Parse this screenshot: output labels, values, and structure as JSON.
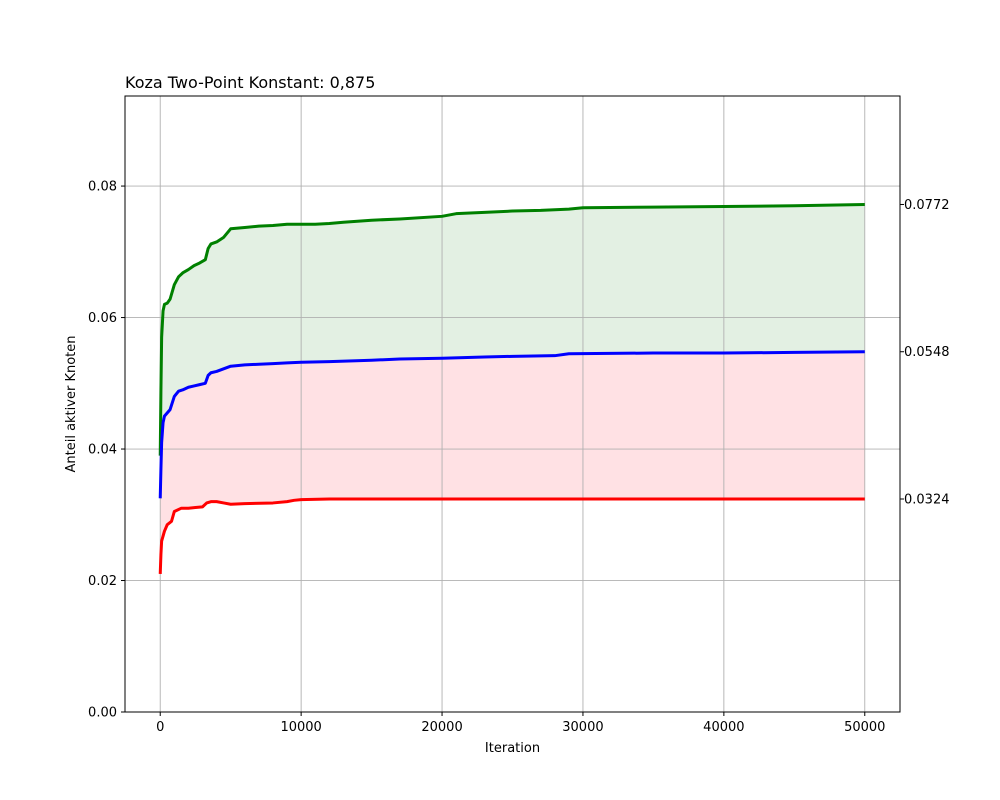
{
  "chart_data": {
    "type": "line",
    "title": "Koza Two-Point Konstant: 0,875",
    "xlabel": "Iteration",
    "ylabel": "Anteil aktiver Knoten",
    "xlim": [
      -2500,
      52500
    ],
    "ylim": [
      0.0,
      0.0937
    ],
    "xticks": [
      0,
      10000,
      20000,
      30000,
      40000,
      50000
    ],
    "yticks": [
      0.0,
      0.02,
      0.04,
      0.06,
      0.08
    ],
    "ytick_labels": [
      "0.00",
      "0.02",
      "0.04",
      "0.06",
      "0.08"
    ],
    "grid": true,
    "right_labels": [
      "0.0772",
      "0.0548",
      "0.0324"
    ],
    "colors": {
      "max": "#008000",
      "mean": "#0000ff",
      "min": "#ff0000",
      "fill_upper": "#e3f0e3",
      "fill_lower": "#ffe1e4",
      "grid": "#b0b0b0"
    },
    "series": [
      {
        "key": "max",
        "x": [
          0,
          50,
          100,
          200,
          300,
          500,
          700,
          1000,
          1300,
          1600,
          2000,
          2400,
          2800,
          3200,
          3400,
          3600,
          4000,
          4500,
          5000,
          6000,
          7000,
          8000,
          9000,
          10000,
          11000,
          12000,
          13000,
          15000,
          17000,
          20000,
          21000,
          23000,
          25000,
          27000,
          29000,
          30000,
          35000,
          40000,
          45000,
          50000
        ],
        "y": [
          0.039,
          0.049,
          0.057,
          0.061,
          0.062,
          0.0622,
          0.0628,
          0.065,
          0.0662,
          0.0668,
          0.0673,
          0.0679,
          0.0683,
          0.0688,
          0.0705,
          0.0712,
          0.0715,
          0.0722,
          0.0735,
          0.0737,
          0.0739,
          0.074,
          0.0742,
          0.0742,
          0.0742,
          0.0743,
          0.0745,
          0.0748,
          0.075,
          0.0754,
          0.0758,
          0.076,
          0.0762,
          0.0763,
          0.0765,
          0.0767,
          0.0768,
          0.0769,
          0.077,
          0.0772
        ]
      },
      {
        "key": "mean",
        "x": [
          0,
          50,
          100,
          200,
          300,
          500,
          700,
          1000,
          1300,
          1600,
          2000,
          2400,
          2800,
          3200,
          3400,
          3600,
          4000,
          4500,
          5000,
          6000,
          7000,
          8000,
          9000,
          10000,
          12000,
          15000,
          17000,
          20000,
          23000,
          25000,
          28000,
          29000,
          35000,
          40000,
          45000,
          50000
        ],
        "y": [
          0.0325,
          0.037,
          0.041,
          0.044,
          0.045,
          0.0455,
          0.046,
          0.048,
          0.0488,
          0.049,
          0.0494,
          0.0496,
          0.0498,
          0.05,
          0.0512,
          0.0516,
          0.0518,
          0.0522,
          0.0526,
          0.0528,
          0.0529,
          0.053,
          0.0531,
          0.0532,
          0.0533,
          0.0535,
          0.0537,
          0.0538,
          0.054,
          0.0541,
          0.0542,
          0.0545,
          0.0546,
          0.0546,
          0.0547,
          0.0548
        ]
      },
      {
        "key": "min",
        "x": [
          0,
          50,
          100,
          300,
          500,
          800,
          1000,
          1500,
          2000,
          2500,
          3000,
          3300,
          3600,
          4000,
          4500,
          5000,
          6000,
          8000,
          9000,
          9500,
          10000,
          12000,
          15000,
          20000,
          30000,
          40000,
          50000
        ],
        "y": [
          0.021,
          0.024,
          0.026,
          0.0275,
          0.0285,
          0.029,
          0.0305,
          0.031,
          0.031,
          0.0311,
          0.0312,
          0.0318,
          0.032,
          0.032,
          0.0318,
          0.0316,
          0.0317,
          0.0318,
          0.032,
          0.0322,
          0.0323,
          0.0324,
          0.0324,
          0.0324,
          0.0324,
          0.0324,
          0.0324
        ]
      }
    ]
  }
}
